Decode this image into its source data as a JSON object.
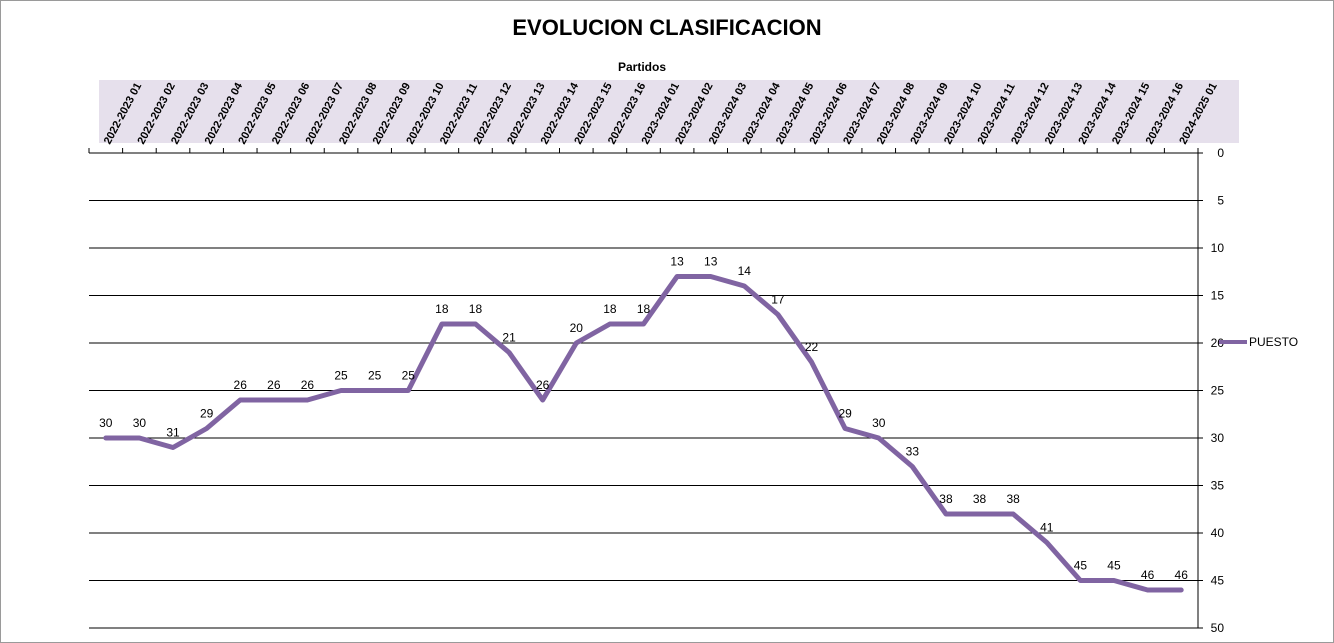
{
  "chart_data": {
    "type": "line",
    "title": "EVOLUCION CLASIFICACION",
    "xlabel": "Partidos",
    "ylabel": "",
    "y_reversed": true,
    "ylim": [
      0,
      50
    ],
    "yticks": [
      0,
      5,
      10,
      15,
      20,
      25,
      30,
      35,
      40,
      45,
      50
    ],
    "x_axis_position": "top",
    "y_axis_position": "right",
    "grid": true,
    "legend": "right",
    "categories": [
      "2022-2023 01",
      "2022-2023 02",
      "2022-2023 03",
      "2022-2023 04",
      "2022-2023 05",
      "2022-2023 06",
      "2022-2023 07",
      "2022-2023 08",
      "2022-2023 09",
      "2022-2023 10",
      "2022-2023 11",
      "2022-2023 12",
      "2022-2023 13",
      "2022-2023 14",
      "2022-2023 15",
      "2022-2023 16",
      "2023-2024 01",
      "2023-2024 02",
      "2023-2024 03",
      "2023-2024 04",
      "2023-2024 05",
      "2023-2024 06",
      "2023-2024 07",
      "2023-2024 08",
      "2023-2024 09",
      "2023-2024 10",
      "2023-2024 11",
      "2023-2024 12",
      "2023-2024 13",
      "2023-2024 14",
      "2023-2024 15",
      "2023-2024 16",
      "2024-2025 01"
    ],
    "series": [
      {
        "name": "PUESTO",
        "color": "#8064a2",
        "values": [
          30,
          30,
          31,
          29,
          26,
          26,
          26,
          25,
          25,
          25,
          18,
          18,
          21,
          26,
          20,
          18,
          18,
          13,
          13,
          14,
          17,
          22,
          29,
          30,
          33,
          38,
          38,
          38,
          41,
          45,
          45,
          46,
          46
        ]
      }
    ],
    "axis_band_color": "#e6e0ec",
    "grid_color": "#000000"
  }
}
